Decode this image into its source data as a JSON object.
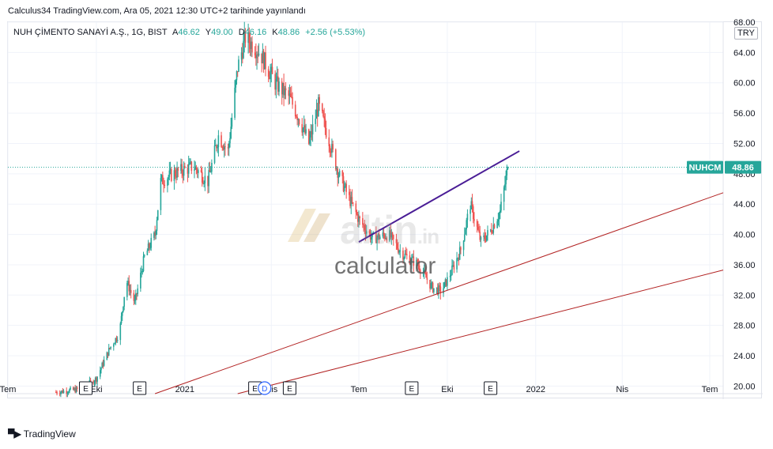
{
  "header": {
    "publish_line": "Calculus34 TradingView.com, Ara 05, 2021 12:30 UTC+2 tarihinde yayınlandı"
  },
  "legend": {
    "symbol": "NUH ÇİMENTO SANAYİ A.Ş., 1G, BIST",
    "open_label": "A",
    "open_value": "46.62",
    "high_label": "Y",
    "high_value": "49.00",
    "low_label": "D",
    "low_value": "46.16",
    "close_label": "K",
    "close_value": "48.86",
    "change": "+2.56 (+5.53%)"
  },
  "currency": "TRY",
  "price_tag": {
    "ticker": "NUHCM",
    "price": "48.86"
  },
  "watermark": {
    "brand": "altin",
    "brand_suffix": ".in",
    "sub": "calculator"
  },
  "footer": {
    "brand": "TradingView"
  },
  "colors": {
    "up": "#26a69a",
    "down": "#ef5350",
    "trend_purple": "#4a1d96",
    "trend_red": "#b22222",
    "price_line": "#26a69a",
    "grid": "#f0f3fa",
    "axis_text": "#131722"
  },
  "chart_data": {
    "type": "candlestick",
    "title": "",
    "y_scale": "linear",
    "ylim": [
      19,
      68
    ],
    "y_ticks": [
      20,
      24,
      28,
      32,
      36,
      40,
      44,
      48,
      52,
      56,
      60,
      64,
      68
    ],
    "y_tick_labels": [
      "20.00",
      "24.00",
      "28.00",
      "32.00",
      "36.00",
      "40.00",
      "44.00",
      "48.00",
      "52.00",
      "56.00",
      "60.00",
      "64.00",
      "68.00"
    ],
    "x_range": [
      "2020-07-01",
      "2022-07-15"
    ],
    "x_ticks": [
      {
        "date": "2020-07-01",
        "label": "Tem"
      },
      {
        "date": "2020-10-01",
        "label": "Eki"
      },
      {
        "date": "2021-01-01",
        "label": "2021"
      },
      {
        "date": "2021-04-01",
        "label": "Nis"
      },
      {
        "date": "2021-07-01",
        "label": "Tem"
      },
      {
        "date": "2021-10-01",
        "label": "Eki"
      },
      {
        "date": "2022-01-01",
        "label": "2022"
      },
      {
        "date": "2022-04-01",
        "label": "Nis"
      },
      {
        "date": "2022-07-01",
        "label": "Tem"
      }
    ],
    "grid": true,
    "last_close": 48.86,
    "series_close_anchors": [
      {
        "date": "2020-08-20",
        "close": 19.2
      },
      {
        "date": "2020-09-15",
        "close": 19.6
      },
      {
        "date": "2020-10-01",
        "close": 21.0
      },
      {
        "date": "2020-10-15",
        "close": 25.0
      },
      {
        "date": "2020-10-25",
        "close": 27.0
      },
      {
        "date": "2020-11-01",
        "close": 34.0
      },
      {
        "date": "2020-11-10",
        "close": 31.0
      },
      {
        "date": "2020-11-20",
        "close": 37.0
      },
      {
        "date": "2020-12-01",
        "close": 40.0
      },
      {
        "date": "2020-12-07",
        "close": 47.0
      },
      {
        "date": "2020-12-20",
        "close": 48.0
      },
      {
        "date": "2021-01-10",
        "close": 49.0
      },
      {
        "date": "2021-01-25",
        "close": 47.0
      },
      {
        "date": "2021-02-05",
        "close": 53.0
      },
      {
        "date": "2021-02-15",
        "close": 51.0
      },
      {
        "date": "2021-02-25",
        "close": 62.0
      },
      {
        "date": "2021-03-05",
        "close": 66.0
      },
      {
        "date": "2021-03-20",
        "close": 64.0
      },
      {
        "date": "2021-04-05",
        "close": 60.0
      },
      {
        "date": "2021-04-20",
        "close": 58.0
      },
      {
        "date": "2021-05-01",
        "close": 55.0
      },
      {
        "date": "2021-05-10",
        "close": 52.0
      },
      {
        "date": "2021-05-20",
        "close": 57.0
      },
      {
        "date": "2021-06-01",
        "close": 52.0
      },
      {
        "date": "2021-06-10",
        "close": 48.0
      },
      {
        "date": "2021-06-20",
        "close": 45.0
      },
      {
        "date": "2021-07-01",
        "close": 42.0
      },
      {
        "date": "2021-07-15",
        "close": 39.5
      },
      {
        "date": "2021-08-01",
        "close": 40.0
      },
      {
        "date": "2021-08-15",
        "close": 37.5
      },
      {
        "date": "2021-09-01",
        "close": 36.0
      },
      {
        "date": "2021-09-15",
        "close": 33.0
      },
      {
        "date": "2021-09-25",
        "close": 32.5
      },
      {
        "date": "2021-10-05",
        "close": 35.0
      },
      {
        "date": "2021-10-15",
        "close": 38.0
      },
      {
        "date": "2021-10-25",
        "close": 44.0
      },
      {
        "date": "2021-11-05",
        "close": 39.0
      },
      {
        "date": "2021-11-15",
        "close": 40.5
      },
      {
        "date": "2021-11-25",
        "close": 43.0
      },
      {
        "date": "2021-12-03",
        "close": 48.86
      }
    ],
    "trendlines": [
      {
        "name": "purple",
        "from": {
          "date": "2021-07-01",
          "price": 39.0
        },
        "to": {
          "date": "2021-12-15",
          "price": 51.0
        }
      },
      {
        "name": "upper_red",
        "from": {
          "date": "2020-12-01",
          "price": 19.0
        },
        "to": {
          "date": "2022-07-15",
          "price": 45.5
        }
      },
      {
        "name": "lower_red",
        "from": {
          "date": "2021-02-25",
          "price": 19.0
        },
        "to": {
          "date": "2022-07-15",
          "price": 35.3
        }
      }
    ],
    "event_markers": [
      {
        "date": "2020-09-20",
        "label": "E"
      },
      {
        "date": "2020-11-15",
        "label": "E"
      },
      {
        "date": "2021-03-15",
        "label": "E"
      },
      {
        "date": "2021-03-25",
        "label": "D"
      },
      {
        "date": "2021-04-20",
        "label": "E"
      },
      {
        "date": "2021-08-25",
        "label": "E"
      },
      {
        "date": "2021-11-15",
        "label": "E"
      }
    ]
  }
}
